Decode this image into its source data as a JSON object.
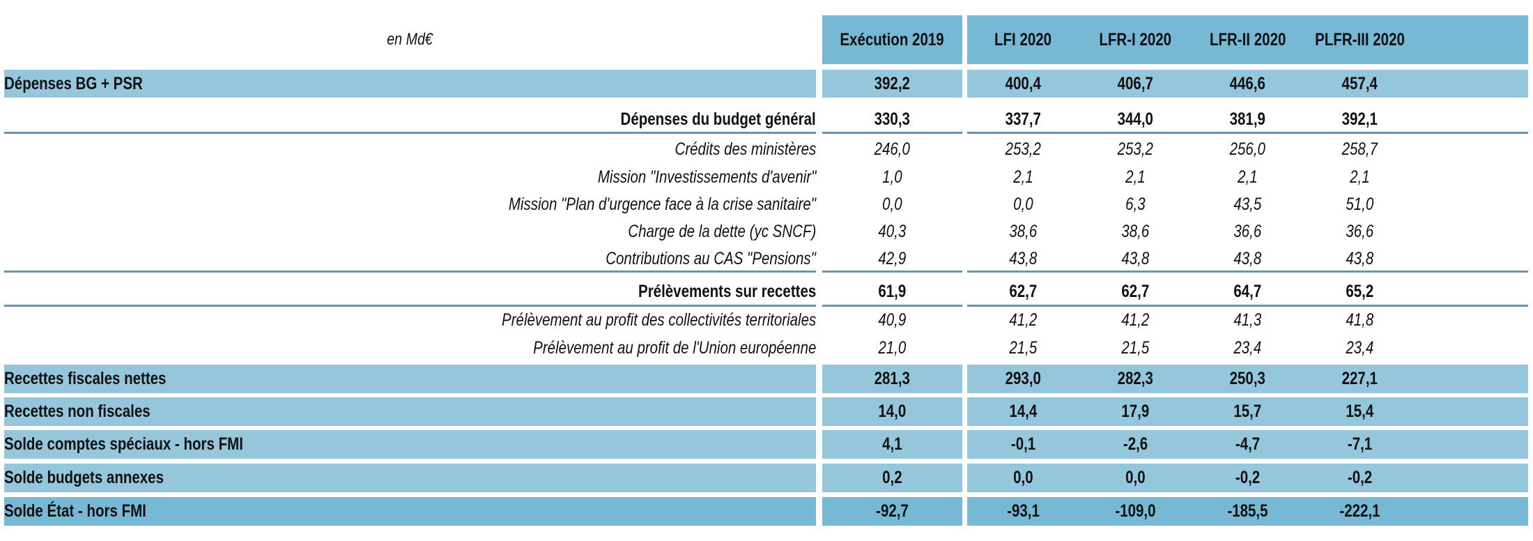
{
  "table": {
    "unit_label": "en Md€",
    "columns": [
      "Exécution 2019",
      "LFI 2020",
      "LFR-I 2020",
      "LFR-II 2020",
      "PLFR-III 2020"
    ],
    "rows": [
      {
        "label": "Dépenses BG + PSR",
        "style": "band-light",
        "values": [
          "392,2",
          "400,4",
          "406,7",
          "446,6",
          "457,4"
        ]
      },
      {
        "label": "Dépenses du budget général",
        "style": "bold-right",
        "values": [
          "330,3",
          "337,7",
          "344,0",
          "381,9",
          "392,1"
        ]
      },
      {
        "label": "Crédits des ministères",
        "style": "italic-right",
        "values": [
          "246,0",
          "253,2",
          "253,2",
          "256,0",
          "258,7"
        ]
      },
      {
        "label": "Mission \"Investissements d'avenir\"",
        "style": "italic-right",
        "values": [
          "1,0",
          "2,1",
          "2,1",
          "2,1",
          "2,1"
        ]
      },
      {
        "label": "Mission \"Plan d'urgence face à la crise sanitaire\"",
        "style": "italic-right",
        "values": [
          "0,0",
          "0,0",
          "6,3",
          "43,5",
          "51,0"
        ]
      },
      {
        "label": "Charge de la dette (yc SNCF)",
        "style": "italic-right",
        "values": [
          "40,3",
          "38,6",
          "38,6",
          "36,6",
          "36,6"
        ]
      },
      {
        "label": "Contributions au CAS \"Pensions\"",
        "style": "italic-right",
        "values": [
          "42,9",
          "43,8",
          "43,8",
          "43,8",
          "43,8"
        ]
      },
      {
        "label": "Prélèvements sur recettes",
        "style": "bold-right",
        "values": [
          "61,9",
          "62,7",
          "62,7",
          "64,7",
          "65,2"
        ]
      },
      {
        "label": "Prélèvement au profit des collectivités territoriales",
        "style": "italic-right",
        "values": [
          "40,9",
          "41,2",
          "41,2",
          "41,3",
          "41,8"
        ]
      },
      {
        "label": "Prélèvement au profit de l'Union européenne",
        "style": "italic-right",
        "values": [
          "21,0",
          "21,5",
          "21,5",
          "23,4",
          "23,4"
        ]
      },
      {
        "label": "Recettes fiscales nettes",
        "style": "band-light",
        "values": [
          "281,3",
          "293,0",
          "282,3",
          "250,3",
          "227,1"
        ]
      },
      {
        "label": "Recettes non fiscales",
        "style": "band-light",
        "values": [
          "14,0",
          "14,4",
          "17,9",
          "15,7",
          "15,4"
        ]
      },
      {
        "label": "Solde comptes spéciaux - hors FMI",
        "style": "band-light",
        "values": [
          "4,1",
          "-0,1",
          "-2,6",
          "-4,7",
          "-7,1"
        ]
      },
      {
        "label": "Solde budgets annexes",
        "style": "band-light",
        "values": [
          "0,2",
          "0,0",
          "0,0",
          "-0,2",
          "-0,2"
        ]
      },
      {
        "label": "Solde État - hors FMI",
        "style": "band-dark",
        "values": [
          "-92,7",
          "-93,1",
          "-109,0",
          "-185,5",
          "-222,1"
        ]
      }
    ]
  },
  "colors": {
    "header_band": "#77b8d4",
    "light_band": "#96c6dc",
    "separator": "#6a93ad"
  }
}
